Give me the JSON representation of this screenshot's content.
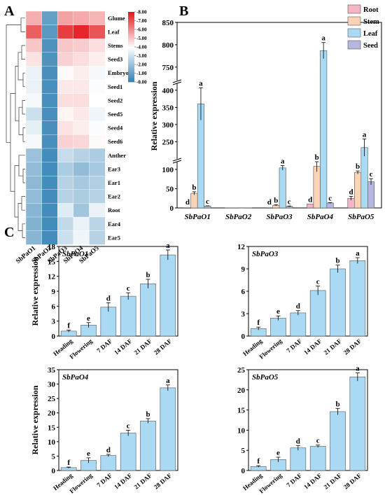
{
  "colors": {
    "root": "#f4b6c2",
    "stem": "#fbd3b6",
    "leaf": "#a9d9f3",
    "seed": "#b5b7e0",
    "bar_c": "#a9d9f3",
    "heat_low": "#2f7fb3",
    "heat_mid": "#ffffff",
    "heat_high": "#e41a1c"
  },
  "chart_data": [
    {
      "panel": "A",
      "type": "heatmap",
      "rows": [
        "Glume",
        "Leaf",
        "Stems",
        "Seed3",
        "Embryo",
        "Seed1",
        "Seed2",
        "Seed5",
        "Seed4",
        "Seed6",
        "Anther",
        "Ear3",
        "Ear1",
        "Ear2",
        "Root",
        "Ear4",
        "Ear5"
      ],
      "columns": [
        "SbPaO1",
        "SbPaO2",
        "SbPaO3",
        "SbPaO4",
        "SbPaO5"
      ],
      "values": [
        [
          5.4,
          1.0,
          5.6,
          5.5,
          5.3
        ],
        [
          6.8,
          0.8,
          7.4,
          7.8,
          7.0
        ],
        [
          5.0,
          0.6,
          5.0,
          4.9,
          4.6
        ],
        [
          4.5,
          0.6,
          4.8,
          4.6,
          4.3
        ],
        [
          3.6,
          0.5,
          4.1,
          4.3,
          3.8
        ],
        [
          3.6,
          0.5,
          4.4,
          4.4,
          3.9
        ],
        [
          3.8,
          0.5,
          4.6,
          4.6,
          4.0
        ],
        [
          3.0,
          0.5,
          4.2,
          4.4,
          3.7
        ],
        [
          3.5,
          0.5,
          4.5,
          4.3,
          3.9
        ],
        [
          3.8,
          0.5,
          4.8,
          4.7,
          4.1
        ],
        [
          2.1,
          0.4,
          2.9,
          2.6,
          2.4
        ],
        [
          1.9,
          0.4,
          2.4,
          1.9,
          2.3
        ],
        [
          1.8,
          0.4,
          2.6,
          2.3,
          2.5
        ],
        [
          1.9,
          0.4,
          2.6,
          2.4,
          2.6
        ],
        [
          1.7,
          0.4,
          3.4,
          2.2,
          3.6
        ],
        [
          1.6,
          0.4,
          2.8,
          3.6,
          2.7
        ],
        [
          1.7,
          0.4,
          3.0,
          3.7,
          2.6
        ]
      ],
      "colorbar": {
        "min": 0,
        "max": 8,
        "ticks": [
          "0.00",
          "1.00",
          "2.00",
          "3.00",
          "4.00",
          "5.00",
          "6.00",
          "7.00",
          "8.00"
        ]
      }
    },
    {
      "panel": "B",
      "type": "bar",
      "ylabel": "Relative expression",
      "categories": [
        "SbPaO1",
        "SbPaO2",
        "SbPaO3",
        "SbPaO4",
        "SbPaO5"
      ],
      "legend": "top-right",
      "axis_segments": [
        {
          "range": [
            0,
            120
          ],
          "ticks": [
            0,
            50,
            100
          ]
        },
        {
          "range": [
            200,
            420
          ],
          "ticks": [
            250,
            300,
            350,
            400
          ]
        },
        {
          "range": [
            720,
            850
          ],
          "ticks": [
            750,
            800,
            850
          ]
        }
      ],
      "series": [
        {
          "name": "Root",
          "values": [
            0,
            0.3,
            0,
            10,
            25
          ],
          "errors": [
            0,
            0,
            0,
            0,
            5
          ],
          "letters": [
            "d",
            "",
            "d",
            "d",
            "d"
          ]
        },
        {
          "name": "Stem",
          "values": [
            38,
            0.3,
            7,
            108,
            92
          ],
          "errors": [
            4,
            0,
            1.5,
            14,
            4
          ],
          "letters": [
            "b",
            "",
            "b",
            "b",
            "b"
          ]
        },
        {
          "name": "Leaf",
          "values": [
            360,
            0.5,
            104,
            787,
            233
          ],
          "errors": [
            47,
            0,
            6,
            18,
            25
          ],
          "letters": [
            "a",
            "",
            "a",
            "a",
            "a"
          ]
        },
        {
          "name": "Seed",
          "values": [
            5,
            0.3,
            4,
            13,
            68
          ],
          "errors": [
            0.5,
            0,
            1,
            1,
            8
          ],
          "letters": [
            "c",
            "",
            "c",
            "c",
            "c"
          ]
        }
      ]
    },
    {
      "panel": "C",
      "type": "bar",
      "title": "SbPaO1",
      "ylabel": "Relative expression",
      "categories": [
        "Heading",
        "Flowering",
        "7 DAF",
        "14 DAF",
        "21 DAF",
        "28 DAF"
      ],
      "values": [
        1,
        2.2,
        5.8,
        8,
        10.5,
        16.3
      ],
      "errors": [
        0.2,
        0.5,
        0.9,
        0.7,
        0.9,
        1.0
      ],
      "letters": [
        "f",
        "e",
        "d",
        "c",
        "b",
        "a"
      ],
      "ylim": [
        0,
        18
      ],
      "yticks": [
        0,
        3,
        6,
        9,
        12,
        15,
        18
      ]
    },
    {
      "panel": "C",
      "type": "bar",
      "title": "SbPaO3",
      "ylabel": "",
      "categories": [
        "Heading",
        "Flowering",
        "7 DAF",
        "14 DAF",
        "21 DAF",
        "28 DAF"
      ],
      "values": [
        1,
        2.4,
        3.1,
        6.1,
        9.0,
        10.1
      ],
      "errors": [
        0.2,
        0.3,
        0.3,
        0.6,
        0.5,
        0.4
      ],
      "letters": [
        "f",
        "e",
        "d",
        "c",
        "b",
        "a"
      ],
      "ylim": [
        0,
        12
      ],
      "yticks": [
        0,
        3,
        6,
        9,
        12
      ]
    },
    {
      "panel": "C",
      "type": "bar",
      "title": "SbPaO4",
      "ylabel": "Relative expression",
      "categories": [
        "Heading",
        "Flowering",
        "7 DAF",
        "14 DAF",
        "21 DAF",
        "28 DAF"
      ],
      "values": [
        1,
        3.5,
        5.2,
        13,
        17.2,
        28.7
      ],
      "errors": [
        0.2,
        0.9,
        0.4,
        1.0,
        0.8,
        1.0
      ],
      "letters": [
        "f",
        "e",
        "d",
        "c",
        "b",
        "a"
      ],
      "ylim": [
        0,
        35
      ],
      "yticks": [
        0,
        5,
        10,
        15,
        20,
        25,
        30,
        35
      ]
    },
    {
      "panel": "C",
      "type": "bar",
      "title": "SbPaO5",
      "ylabel": "",
      "categories": [
        "Heading",
        "Flowering",
        "7 DAF",
        "14 DAF",
        "21 DAF",
        "28 DAF"
      ],
      "values": [
        1,
        2.7,
        5.6,
        6.0,
        14.6,
        23.2
      ],
      "errors": [
        0.2,
        0.6,
        0.6,
        0.3,
        0.8,
        1.0
      ],
      "letters": [
        "f",
        "e",
        "d",
        "c",
        "b",
        "a"
      ],
      "ylim": [
        0,
        25
      ],
      "yticks": [
        0,
        5,
        10,
        15,
        20,
        25
      ]
    }
  ],
  "panel_labels": [
    "A",
    "B",
    "C"
  ]
}
